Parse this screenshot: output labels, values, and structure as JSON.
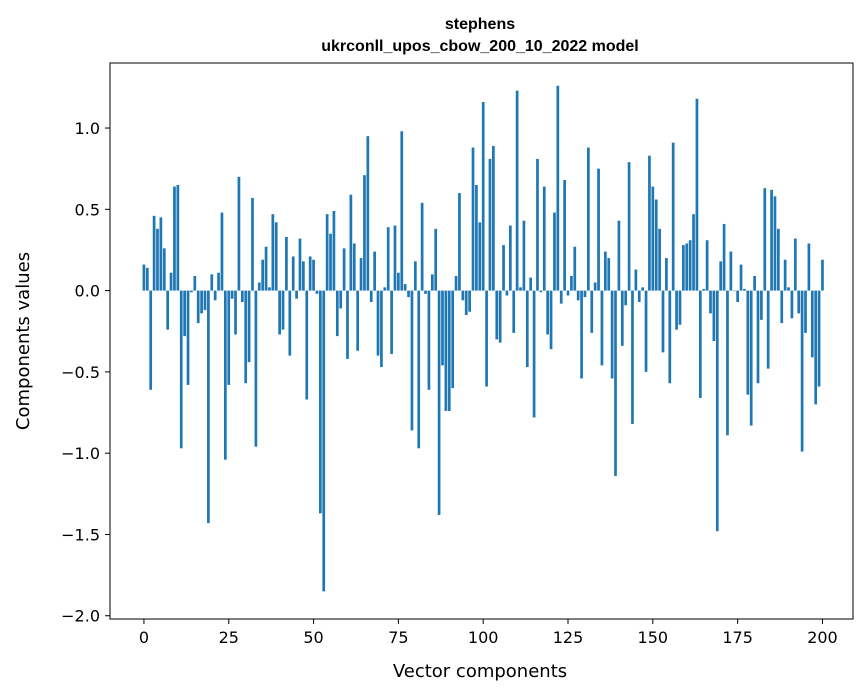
{
  "chart_data": {
    "type": "bar",
    "title": "stephens",
    "subtitle": "ukrconll_upos_cbow_200_10_2022 model",
    "xlabel": "Vector components",
    "ylabel": "Components values",
    "xlim": [
      -10,
      209
    ],
    "ylim": [
      -2.02,
      1.4
    ],
    "xticks": [
      0,
      25,
      50,
      75,
      100,
      125,
      150,
      175,
      200
    ],
    "yticks": [
      -2.0,
      -1.5,
      -1.0,
      -0.5,
      0.0,
      0.5,
      1.0
    ],
    "ytick_labels": [
      "−2.0",
      "−1.5",
      "−1.0",
      "−0.5",
      "0.0",
      "0.5",
      "1.0"
    ],
    "grid": false,
    "color": "#1f77b4",
    "values": [
      0.16,
      0.14,
      -0.61,
      0.46,
      0.38,
      0.45,
      0.26,
      -0.24,
      0.11,
      0.64,
      0.65,
      -0.97,
      -0.28,
      -0.58,
      -0.01,
      0.09,
      -0.2,
      -0.14,
      -0.12,
      -1.43,
      0.1,
      -0.06,
      0.11,
      0.48,
      -1.04,
      -0.58,
      -0.05,
      -0.27,
      0.7,
      -0.07,
      -0.57,
      -0.44,
      0.57,
      -0.96,
      0.05,
      0.19,
      0.27,
      0.02,
      0.47,
      0.42,
      -0.27,
      -0.24,
      0.33,
      -0.4,
      0.21,
      -0.05,
      0.32,
      0.18,
      -0.67,
      0.21,
      0.19,
      -0.02,
      -1.37,
      -1.85,
      0.47,
      0.35,
      0.49,
      -0.28,
      -0.11,
      0.26,
      -0.42,
      0.59,
      0.29,
      -0.37,
      0.2,
      0.71,
      0.95,
      -0.07,
      0.24,
      -0.4,
      -0.47,
      0.02,
      0.39,
      -0.39,
      0.4,
      0.11,
      0.98,
      0.04,
      -0.04,
      -0.86,
      0.18,
      -0.97,
      0.54,
      -0.02,
      -0.61,
      0.1,
      0.38,
      -1.38,
      -0.46,
      -0.74,
      -0.74,
      -0.6,
      0.09,
      0.6,
      -0.06,
      -0.15,
      -0.13,
      0.88,
      0.65,
      0.42,
      1.16,
      -0.59,
      0.81,
      0.89,
      -0.3,
      -0.32,
      0.28,
      -0.03,
      0.4,
      -0.26,
      1.23,
      0.02,
      0.43,
      -0.47,
      0.08,
      -0.78,
      0.81,
      -0.01,
      0.64,
      -0.27,
      -0.36,
      0.48,
      1.26,
      -0.08,
      0.68,
      -0.03,
      0.09,
      0.27,
      -0.06,
      -0.54,
      -0.04,
      0.88,
      -0.26,
      0.05,
      0.75,
      -0.46,
      0.24,
      0.2,
      -0.54,
      -1.14,
      0.43,
      -0.34,
      -0.09,
      0.79,
      -0.82,
      0.13,
      -0.07,
      0.02,
      -0.5,
      0.83,
      0.64,
      0.56,
      0.38,
      -0.38,
      0.2,
      -0.57,
      0.91,
      -0.24,
      -0.21,
      0.28,
      0.29,
      0.31,
      0.47,
      1.18,
      -0.66,
      0.01,
      0.31,
      -0.14,
      -0.31,
      -1.48,
      0.18,
      0.41,
      -0.89,
      0.24,
      0.0,
      -0.07,
      0.16,
      0.01,
      -0.64,
      -0.83,
      0.09,
      -0.57,
      -0.18,
      0.63,
      -0.48,
      0.62,
      0.58,
      0.38,
      -0.2,
      0.19,
      0.02,
      -0.17,
      0.32,
      -0.14,
      -0.99,
      -0.26,
      0.29,
      -0.41,
      -0.7,
      -0.59,
      0.19
    ]
  }
}
